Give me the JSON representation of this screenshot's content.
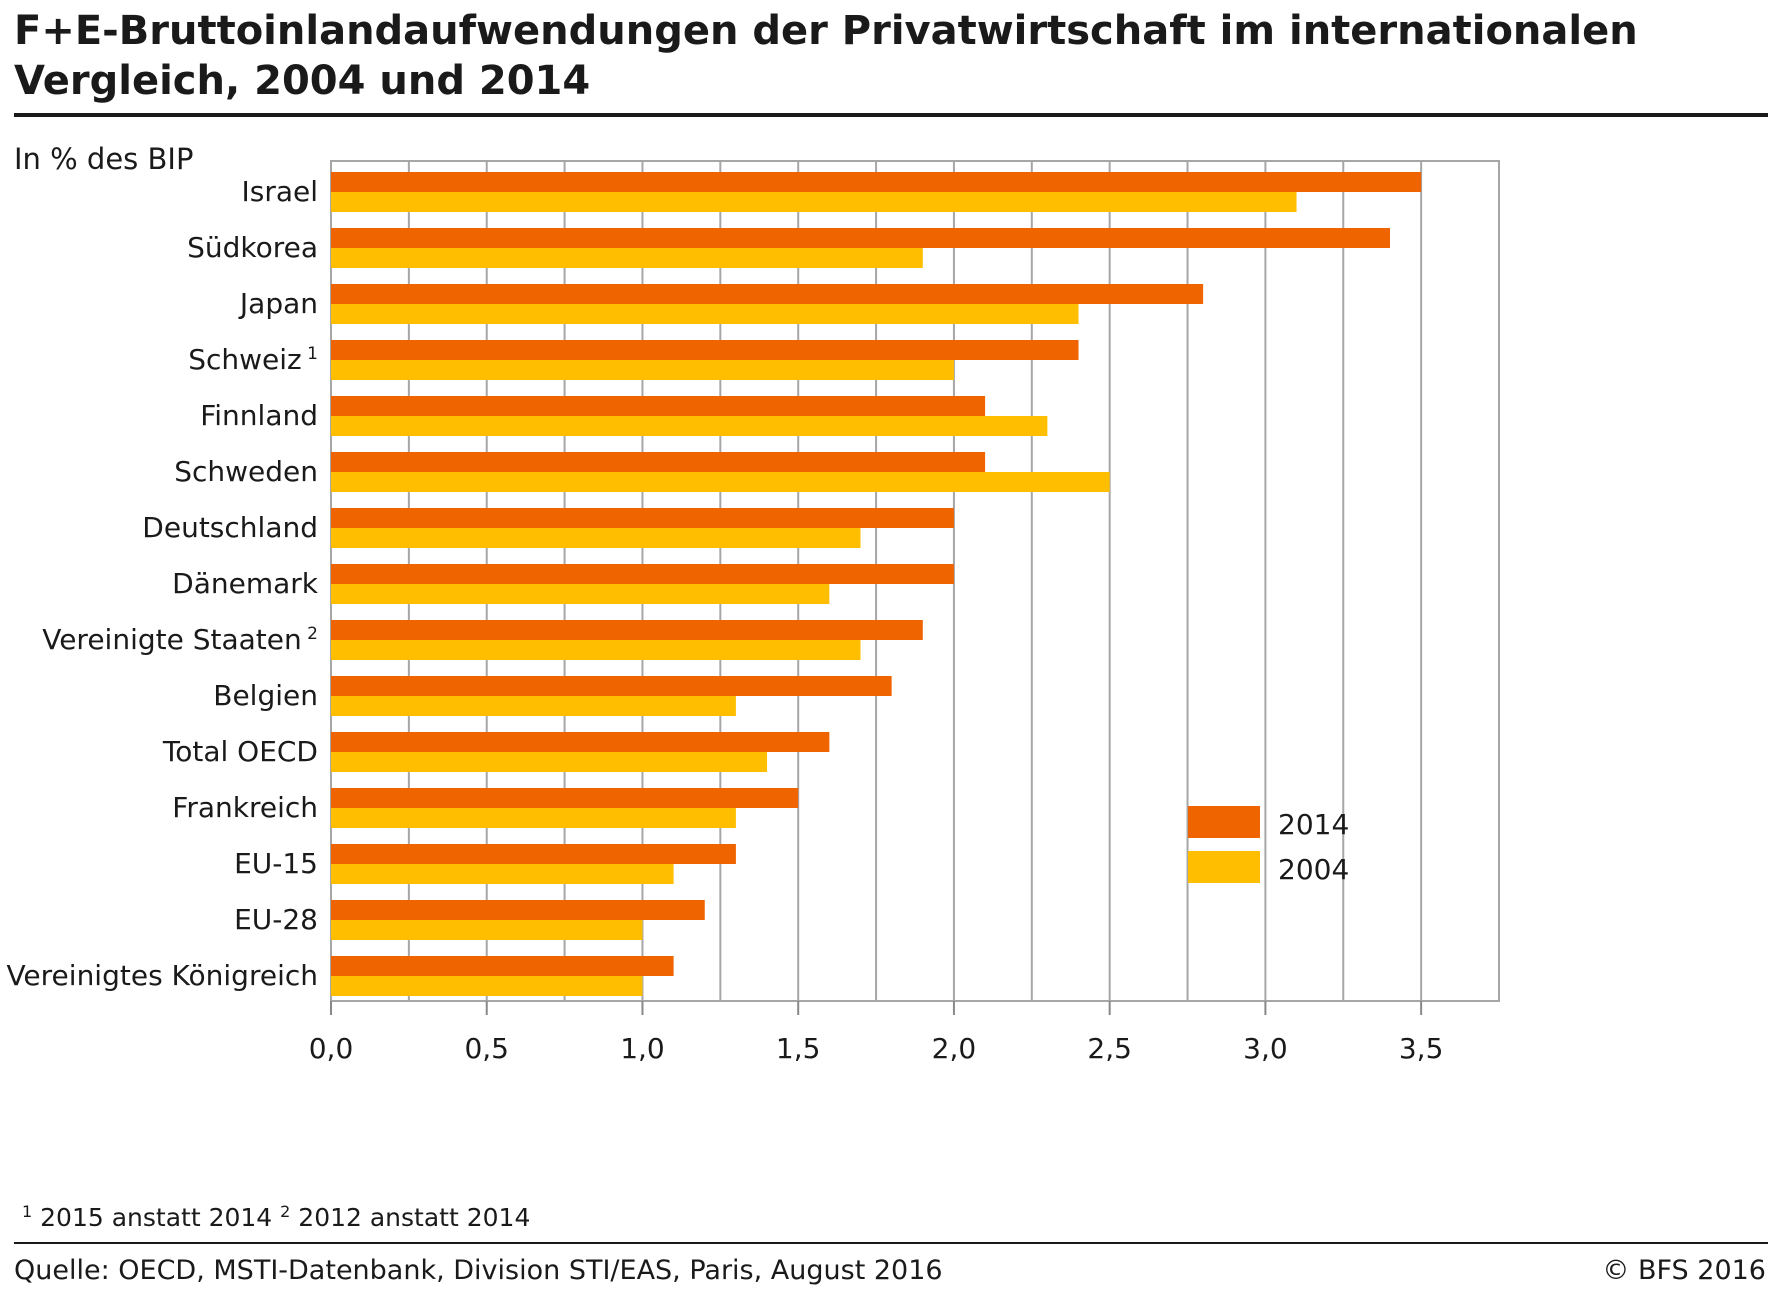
{
  "title": "F+E-Bruttoinlandaufwendungen der Privatwirtschaft im internationalen Vergleich, 2004 und 2014",
  "unit": "In % des BIP",
  "footnotes": [
    {
      "mark": "1",
      "text": "2015 anstatt 2014"
    },
    {
      "mark": "2",
      "text": "2012 anstatt 2014"
    }
  ],
  "source": "Quelle: OECD, MSTI-Datenbank, Division STI/EAS, Paris, August 2016",
  "copyright": "© BFS 2016",
  "colors": {
    "series_2014": "#f06400",
    "series_2004": "#ffbf00",
    "grid": "#a6a6a6",
    "axis": "#888888"
  },
  "chart_data": {
    "type": "bar",
    "orientation": "horizontal",
    "title": "F+E-Bruttoinlandaufwendungen der Privatwirtschaft im internationalen Vergleich, 2004 und 2014",
    "xlabel": "In % des BIP",
    "ylabel": "",
    "xlim": [
      0,
      3.75
    ],
    "tick_values": [
      0,
      0.5,
      1.0,
      1.5,
      2.0,
      2.5,
      3.0,
      3.5
    ],
    "tick_labels": [
      "0,0",
      "0,5",
      "1,0",
      "1,5",
      "2,0",
      "2,5",
      "3,0",
      "3,5"
    ],
    "grid": true,
    "legend_position": "bottom-right",
    "categories": [
      {
        "name": "Israel",
        "sup": ""
      },
      {
        "name": "Südkorea",
        "sup": ""
      },
      {
        "name": "Japan",
        "sup": ""
      },
      {
        "name": "Schweiz",
        "sup": "1"
      },
      {
        "name": "Finnland",
        "sup": ""
      },
      {
        "name": "Schweden",
        "sup": ""
      },
      {
        "name": "Deutschland",
        "sup": ""
      },
      {
        "name": "Dänemark",
        "sup": ""
      },
      {
        "name": "Vereinigte Staaten",
        "sup": "2"
      },
      {
        "name": "Belgien",
        "sup": ""
      },
      {
        "name": "Total OECD",
        "sup": ""
      },
      {
        "name": "Frankreich",
        "sup": ""
      },
      {
        "name": "EU-15",
        "sup": ""
      },
      {
        "name": "EU-28",
        "sup": ""
      },
      {
        "name": "Vereinigtes Königreich",
        "sup": ""
      }
    ],
    "series": [
      {
        "name": "2014",
        "color": "#f06400",
        "values": [
          3.5,
          3.4,
          2.8,
          2.4,
          2.1,
          2.1,
          2.0,
          2.0,
          1.9,
          1.8,
          1.6,
          1.5,
          1.3,
          1.2,
          1.1
        ]
      },
      {
        "name": "2004",
        "color": "#ffbf00",
        "values": [
          3.1,
          1.9,
          2.4,
          2.0,
          2.3,
          2.5,
          1.7,
          1.6,
          1.7,
          1.3,
          1.4,
          1.3,
          1.1,
          1.0,
          1.0
        ]
      }
    ]
  }
}
